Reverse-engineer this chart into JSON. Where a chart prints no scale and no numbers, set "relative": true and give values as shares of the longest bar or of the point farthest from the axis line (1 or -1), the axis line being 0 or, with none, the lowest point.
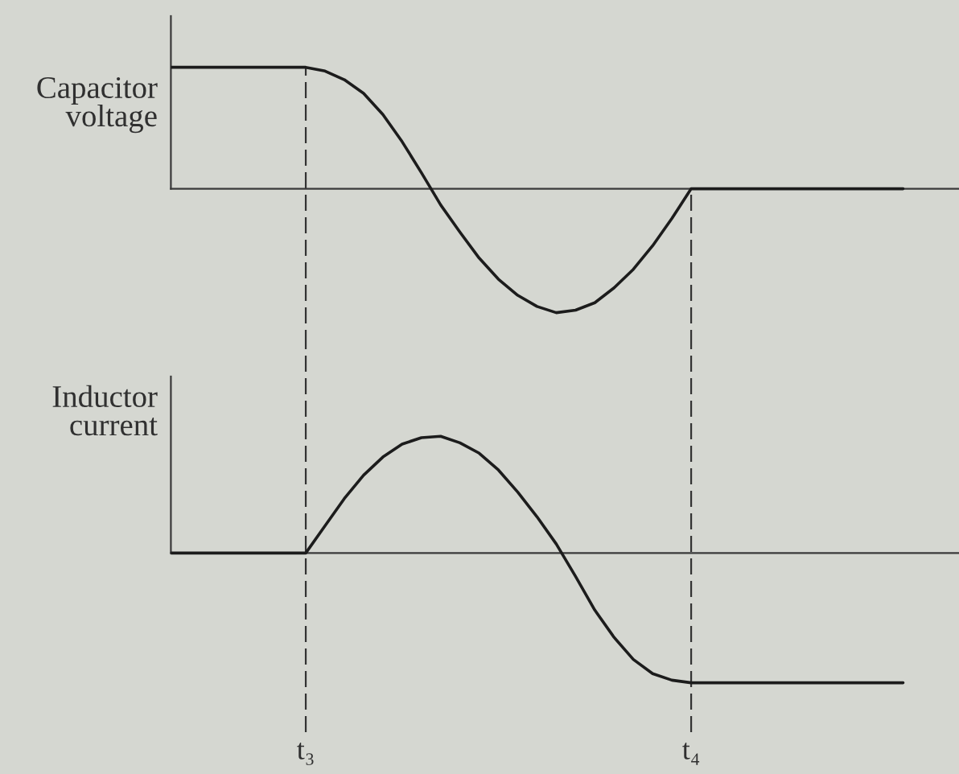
{
  "chart_data": [
    {
      "type": "line",
      "relative": true,
      "ylabel": "Capacitor\nvoltage",
      "tick_labels": false,
      "categories": [
        null,
        null,
        null,
        null,
        null,
        null,
        null,
        "t₃",
        null,
        null,
        null,
        null,
        null,
        null,
        null,
        null,
        null,
        null,
        null,
        null,
        null,
        null,
        null,
        null,
        null,
        null,
        null,
        "t₄",
        null,
        null,
        null,
        null,
        null,
        null,
        null,
        null,
        null,
        null,
        null
      ],
      "series": [
        {
          "color": "#1c1c1c",
          "values": [
            0.98,
            0.98,
            0.98,
            0.98,
            0.98,
            0.98,
            0.98,
            0.98,
            0.95,
            0.88,
            0.77,
            0.6,
            0.38,
            0.13,
            -0.13,
            -0.35,
            -0.56,
            -0.73,
            -0.86,
            -0.95,
            -1,
            -0.98,
            -0.92,
            -0.8,
            -0.65,
            -0.46,
            -0.24,
            0,
            0,
            0,
            0,
            0,
            0,
            0,
            0,
            0,
            0,
            0,
            0
          ]
        }
      ],
      "ref_lines": [
        {
          "axis": "x",
          "value": "t₃",
          "line_style": "dashed"
        },
        {
          "axis": "x",
          "value": "t₄",
          "line_style": "dashed"
        }
      ]
    },
    {
      "type": "line",
      "relative": true,
      "ylabel": "Inductor\ncurrent",
      "tick_labels": "x",
      "categories": [
        null,
        null,
        null,
        null,
        null,
        null,
        null,
        "t₃",
        null,
        null,
        null,
        null,
        null,
        null,
        null,
        null,
        null,
        null,
        null,
        null,
        null,
        null,
        null,
        null,
        null,
        null,
        null,
        "t₄",
        null,
        null,
        null,
        null,
        null,
        null,
        null,
        null,
        null,
        null,
        null
      ],
      "series": [
        {
          "color": "#1c1c1c",
          "values": [
            0,
            0,
            0,
            0,
            0,
            0,
            0,
            0,
            0.21,
            0.42,
            0.6,
            0.74,
            0.84,
            0.89,
            0.9,
            0.85,
            0.77,
            0.64,
            0.47,
            0.28,
            0.07,
            -0.18,
            -0.44,
            -0.65,
            -0.82,
            -0.93,
            -0.98,
            -1,
            -1,
            -1,
            -1,
            -1,
            -1,
            -1,
            -1,
            -1,
            -1,
            -1,
            -1
          ]
        }
      ],
      "ref_lines": [
        {
          "axis": "x",
          "value": "t₃",
          "line_style": "dashed"
        },
        {
          "axis": "x",
          "value": "t₄",
          "line_style": "dashed"
        }
      ]
    }
  ]
}
